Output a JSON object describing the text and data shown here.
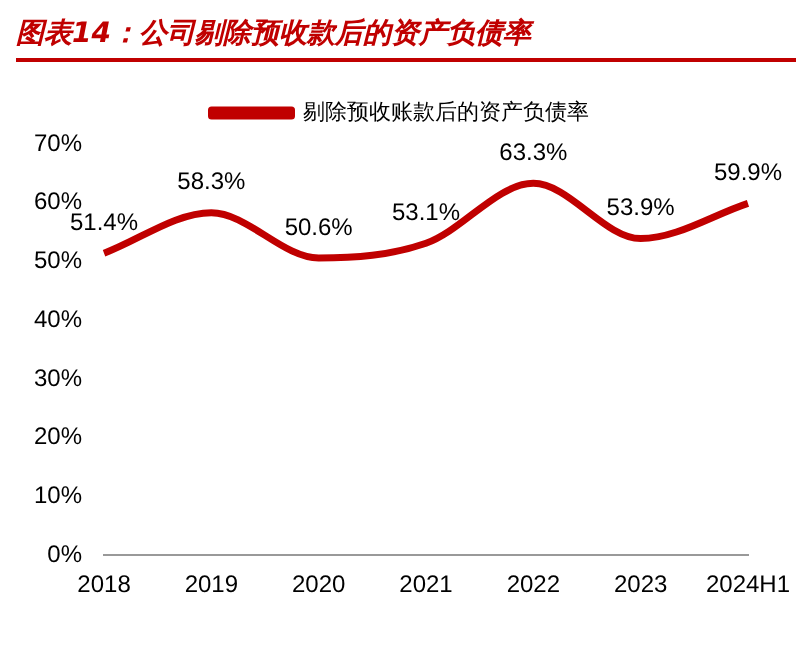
{
  "chart_data": {
    "type": "line",
    "title": "图表14：公司剔除预收款后的资产负债率",
    "categories": [
      "2018",
      "2019",
      "2020",
      "2021",
      "2022",
      "2023",
      "2024H1"
    ],
    "series": [
      {
        "name": "剔除预收账款后的资产负债率",
        "color": "#c00000",
        "values": [
          51.4,
          58.3,
          50.6,
          53.1,
          63.3,
          53.9,
          59.9
        ],
        "value_labels": [
          "51.4%",
          "58.3%",
          "50.6%",
          "53.1%",
          "63.3%",
          "53.9%",
          "59.9%"
        ]
      }
    ],
    "ylim": [
      0,
      70
    ],
    "yticks": [
      {
        "value": 0,
        "label": "0%"
      },
      {
        "value": 10,
        "label": "10%"
      },
      {
        "value": 20,
        "label": "20%"
      },
      {
        "value": 30,
        "label": "30%"
      },
      {
        "value": 40,
        "label": "40%"
      },
      {
        "value": 50,
        "label": "50%"
      },
      {
        "value": 60,
        "label": "60%"
      },
      {
        "value": 70,
        "label": "70%"
      }
    ],
    "grid": false,
    "legend": "top",
    "marker": "none",
    "line_style": "solid"
  }
}
